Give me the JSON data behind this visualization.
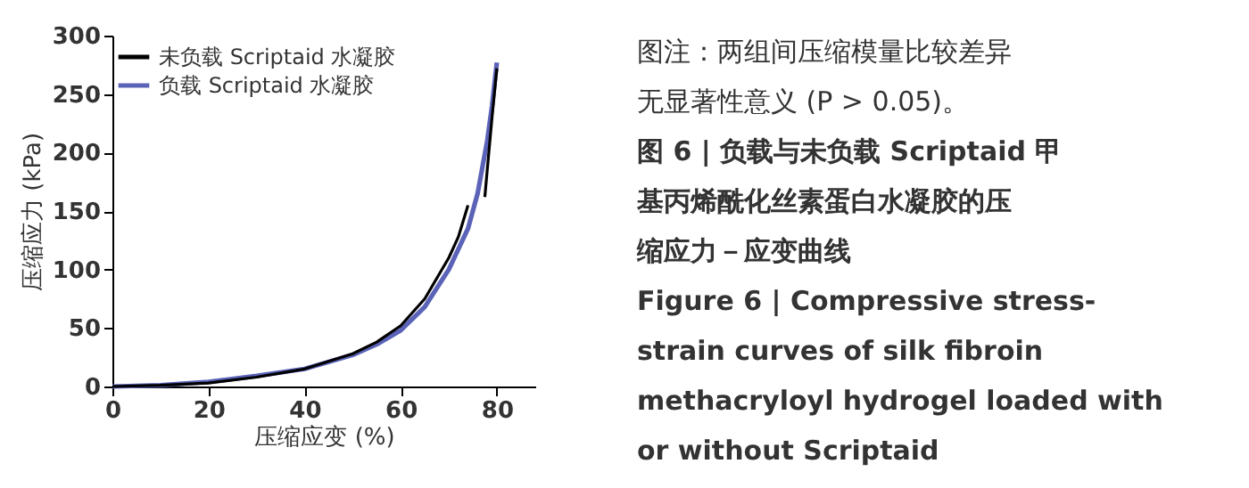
{
  "chart_data": {
    "type": "line",
    "xlabel": "压缩应变 (%)",
    "ylabel": "压缩应力 (kPa)",
    "xlim": [
      0,
      88
    ],
    "xticks": [
      0,
      20,
      40,
      60,
      80
    ],
    "ylim": [
      0,
      300
    ],
    "yticks": [
      0,
      50,
      100,
      150,
      200,
      250,
      300
    ],
    "grid": false,
    "legend": "top left",
    "marker": "none",
    "line_style": "solid",
    "series": [
      {
        "name": "未负载 Scriptaid 水凝胶",
        "color": "#000000",
        "x": [
          0,
          10,
          20,
          30,
          40,
          50,
          55,
          60,
          65,
          70,
          72,
          74,
          75,
          77.5,
          78,
          79,
          80
        ],
        "values": [
          0,
          1,
          3,
          8,
          15,
          28,
          38,
          52,
          75,
          110,
          128,
          155,
          null,
          162,
          185,
          230,
          272
        ]
      },
      {
        "name": "负载 Scriptaid 水凝胶",
        "color": "#5b63b8",
        "x": [
          0,
          10,
          20,
          30,
          40,
          50,
          55,
          60,
          65,
          70,
          74,
          76,
          78,
          79,
          80
        ],
        "values": [
          0,
          1,
          4,
          9,
          15,
          27,
          36,
          48,
          68,
          100,
          135,
          165,
          210,
          240,
          277
        ]
      }
    ],
    "annotations": [
      "图注：两组间压缩模量比较差异无显著性意义 (P > 0.05)。",
      "图 6 | 负载与未负载 Scriptaid 甲基丙烯酰化丝素蛋白水凝胶的压缩应力－应变曲线",
      "Figure 6  |  Compressive stress-\nstrain curves of silk fibroin\nmethacryloyl hydrogel loaded with\nor without Scriptaid"
    ]
  }
}
